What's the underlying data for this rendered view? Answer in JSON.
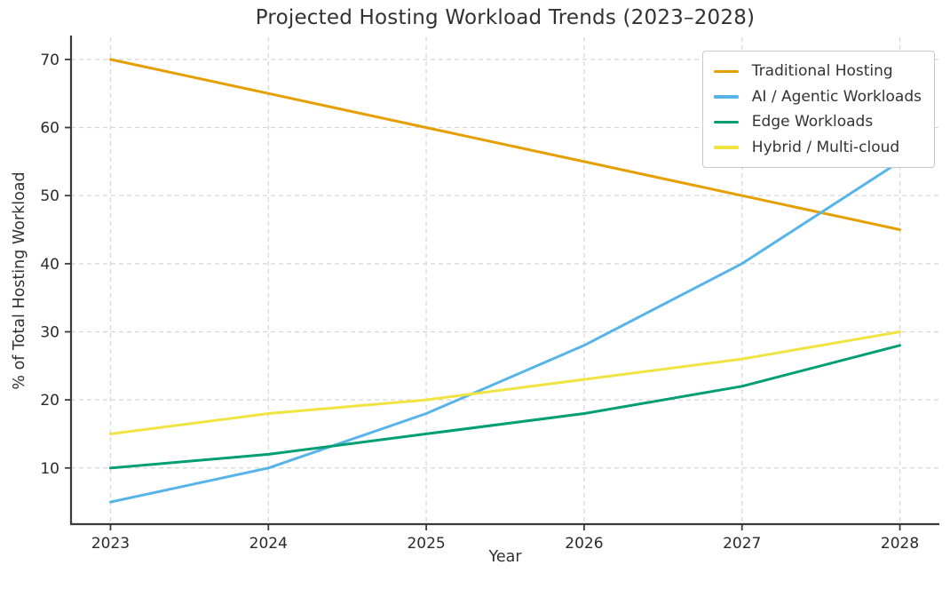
{
  "chart_data": {
    "type": "line",
    "title": "Projected Hosting Workload Trends (2023–2028)",
    "xlabel": "Year",
    "ylabel": "% of Total Hosting Workload",
    "x": [
      2023,
      2024,
      2025,
      2026,
      2027,
      2028
    ],
    "x_tick_labels": [
      "2023",
      "2024",
      "2025",
      "2026",
      "2027",
      "2028"
    ],
    "y_ticks": [
      10,
      20,
      30,
      40,
      50,
      60,
      70
    ],
    "xlim": [
      2022.75,
      2028.25
    ],
    "ylim": [
      1.75,
      73.25
    ],
    "grid": true,
    "legend_position": "upper right",
    "series": [
      {
        "name": "Traditional Hosting",
        "color": "#E69F00",
        "values": [
          70,
          65,
          60,
          55,
          50,
          45
        ]
      },
      {
        "name": "AI / Agentic Workloads",
        "color": "#56B4E9",
        "values": [
          5,
          10,
          18,
          28,
          40,
          55
        ]
      },
      {
        "name": "Edge Workloads",
        "color": "#009E73",
        "values": [
          10,
          12,
          15,
          18,
          22,
          28
        ]
      },
      {
        "name": "Hybrid / Multi-cloud",
        "color": "#F0E442",
        "values": [
          15,
          18,
          20,
          23,
          26,
          30
        ]
      }
    ]
  }
}
